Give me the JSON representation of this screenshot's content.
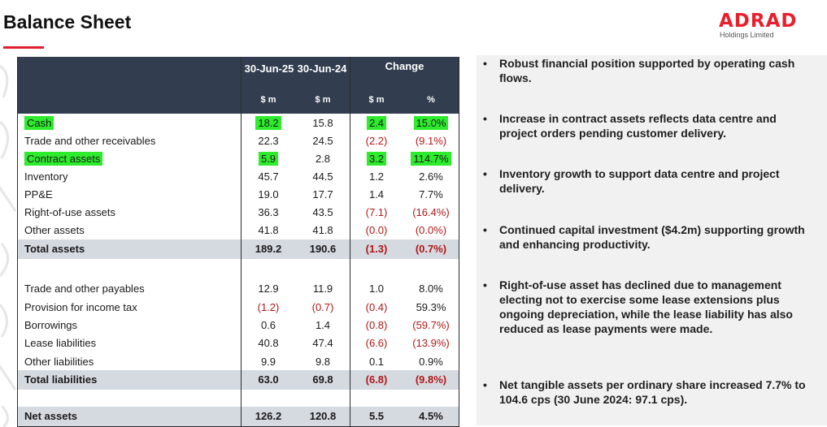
{
  "page": {
    "title": "Balance Sheet"
  },
  "logo": {
    "name": "ADRAD",
    "subtitle": "Holdings Limited"
  },
  "table": {
    "headers": {
      "col1": "30-Jun-25",
      "col2": "30-Jun-24",
      "change": "Change"
    },
    "subheaders": {
      "col1": "$ m",
      "col2": "$ m",
      "change_amount": "$ m",
      "change_pct": "%"
    },
    "assets": [
      {
        "label": "Cash",
        "v25": "18.2",
        "v24": "15.8",
        "chg": "2.4",
        "pct": "15.0%"
      },
      {
        "label": "Trade and other receivables",
        "v25": "22.3",
        "v24": "24.5",
        "chg": "(2.2)",
        "pct": "(9.1%)"
      },
      {
        "label": "Contract assets",
        "v25": "5.9",
        "v24": "2.8",
        "chg": "3.2",
        "pct": "114.7%"
      },
      {
        "label": "Inventory",
        "v25": "45.7",
        "v24": "44.5",
        "chg": "1.2",
        "pct": "2.6%"
      },
      {
        "label": "PP&E",
        "v25": "19.0",
        "v24": "17.7",
        "chg": "1.4",
        "pct": "7.7%"
      },
      {
        "label": "Right-of-use assets",
        "v25": "36.3",
        "v24": "43.5",
        "chg": "(7.1)",
        "pct": "(16.4%)"
      },
      {
        "label": "Other assets",
        "v25": "41.8",
        "v24": "41.8",
        "chg": "(0.0)",
        "pct": "(0.0%)"
      }
    ],
    "total_assets": {
      "label": "Total assets",
      "v25": "189.2",
      "v24": "190.6",
      "chg": "(1.3)",
      "pct": "(0.7%)"
    },
    "liabilities": [
      {
        "label": "Trade and other payables",
        "v25": "12.9",
        "v24": "11.9",
        "chg": "1.0",
        "pct": "8.0%"
      },
      {
        "label": "Provision for income tax",
        "v25": "(1.2)",
        "v24": "(0.7)",
        "chg": "(0.4)",
        "pct": "59.3%"
      },
      {
        "label": "Borrowings",
        "v25": "0.6",
        "v24": "1.4",
        "chg": "(0.8)",
        "pct": "(59.7%)"
      },
      {
        "label": "Lease liabilities",
        "v25": "40.8",
        "v24": "47.4",
        "chg": "(6.6)",
        "pct": "(13.9%)"
      },
      {
        "label": "Other liabilities",
        "v25": "9.9",
        "v24": "9.8",
        "chg": "0.1",
        "pct": "0.9%"
      }
    ],
    "total_liabilities": {
      "label": "Total liabilities",
      "v25": "63.0",
      "v24": "69.8",
      "chg": "(6.8)",
      "pct": "(9.8%)"
    },
    "net_assets": {
      "label": "Net assets",
      "v25": "126.2",
      "v24": "120.8",
      "chg": "5.5",
      "pct": "4.5%"
    }
  },
  "commentary": [
    "Robust financial position supported by operating cash flows.",
    "Increase in contract assets reflects data centre and project orders pending customer delivery.",
    "Inventory growth to support data centre and project delivery.",
    "Continued capital investment ($4.2m) supporting growth and enhancing productivity.",
    "Right-of-use asset has declined due to management electing not to exercise some lease extensions plus ongoing depreciation, while the lease liability has also reduced as lease payments were made.",
    "Net tangible assets per ordinary share increased 7.7% to 104.6 cps (30 June 2024: 97.1 cps)."
  ],
  "colors": {
    "header_bg": "#323e4f",
    "total_bg": "#d5d9e0",
    "highlight": "#2cec2c",
    "negative": "#b01818",
    "accent": "#e01e2d",
    "panel_bg": "#f1f1f1"
  }
}
